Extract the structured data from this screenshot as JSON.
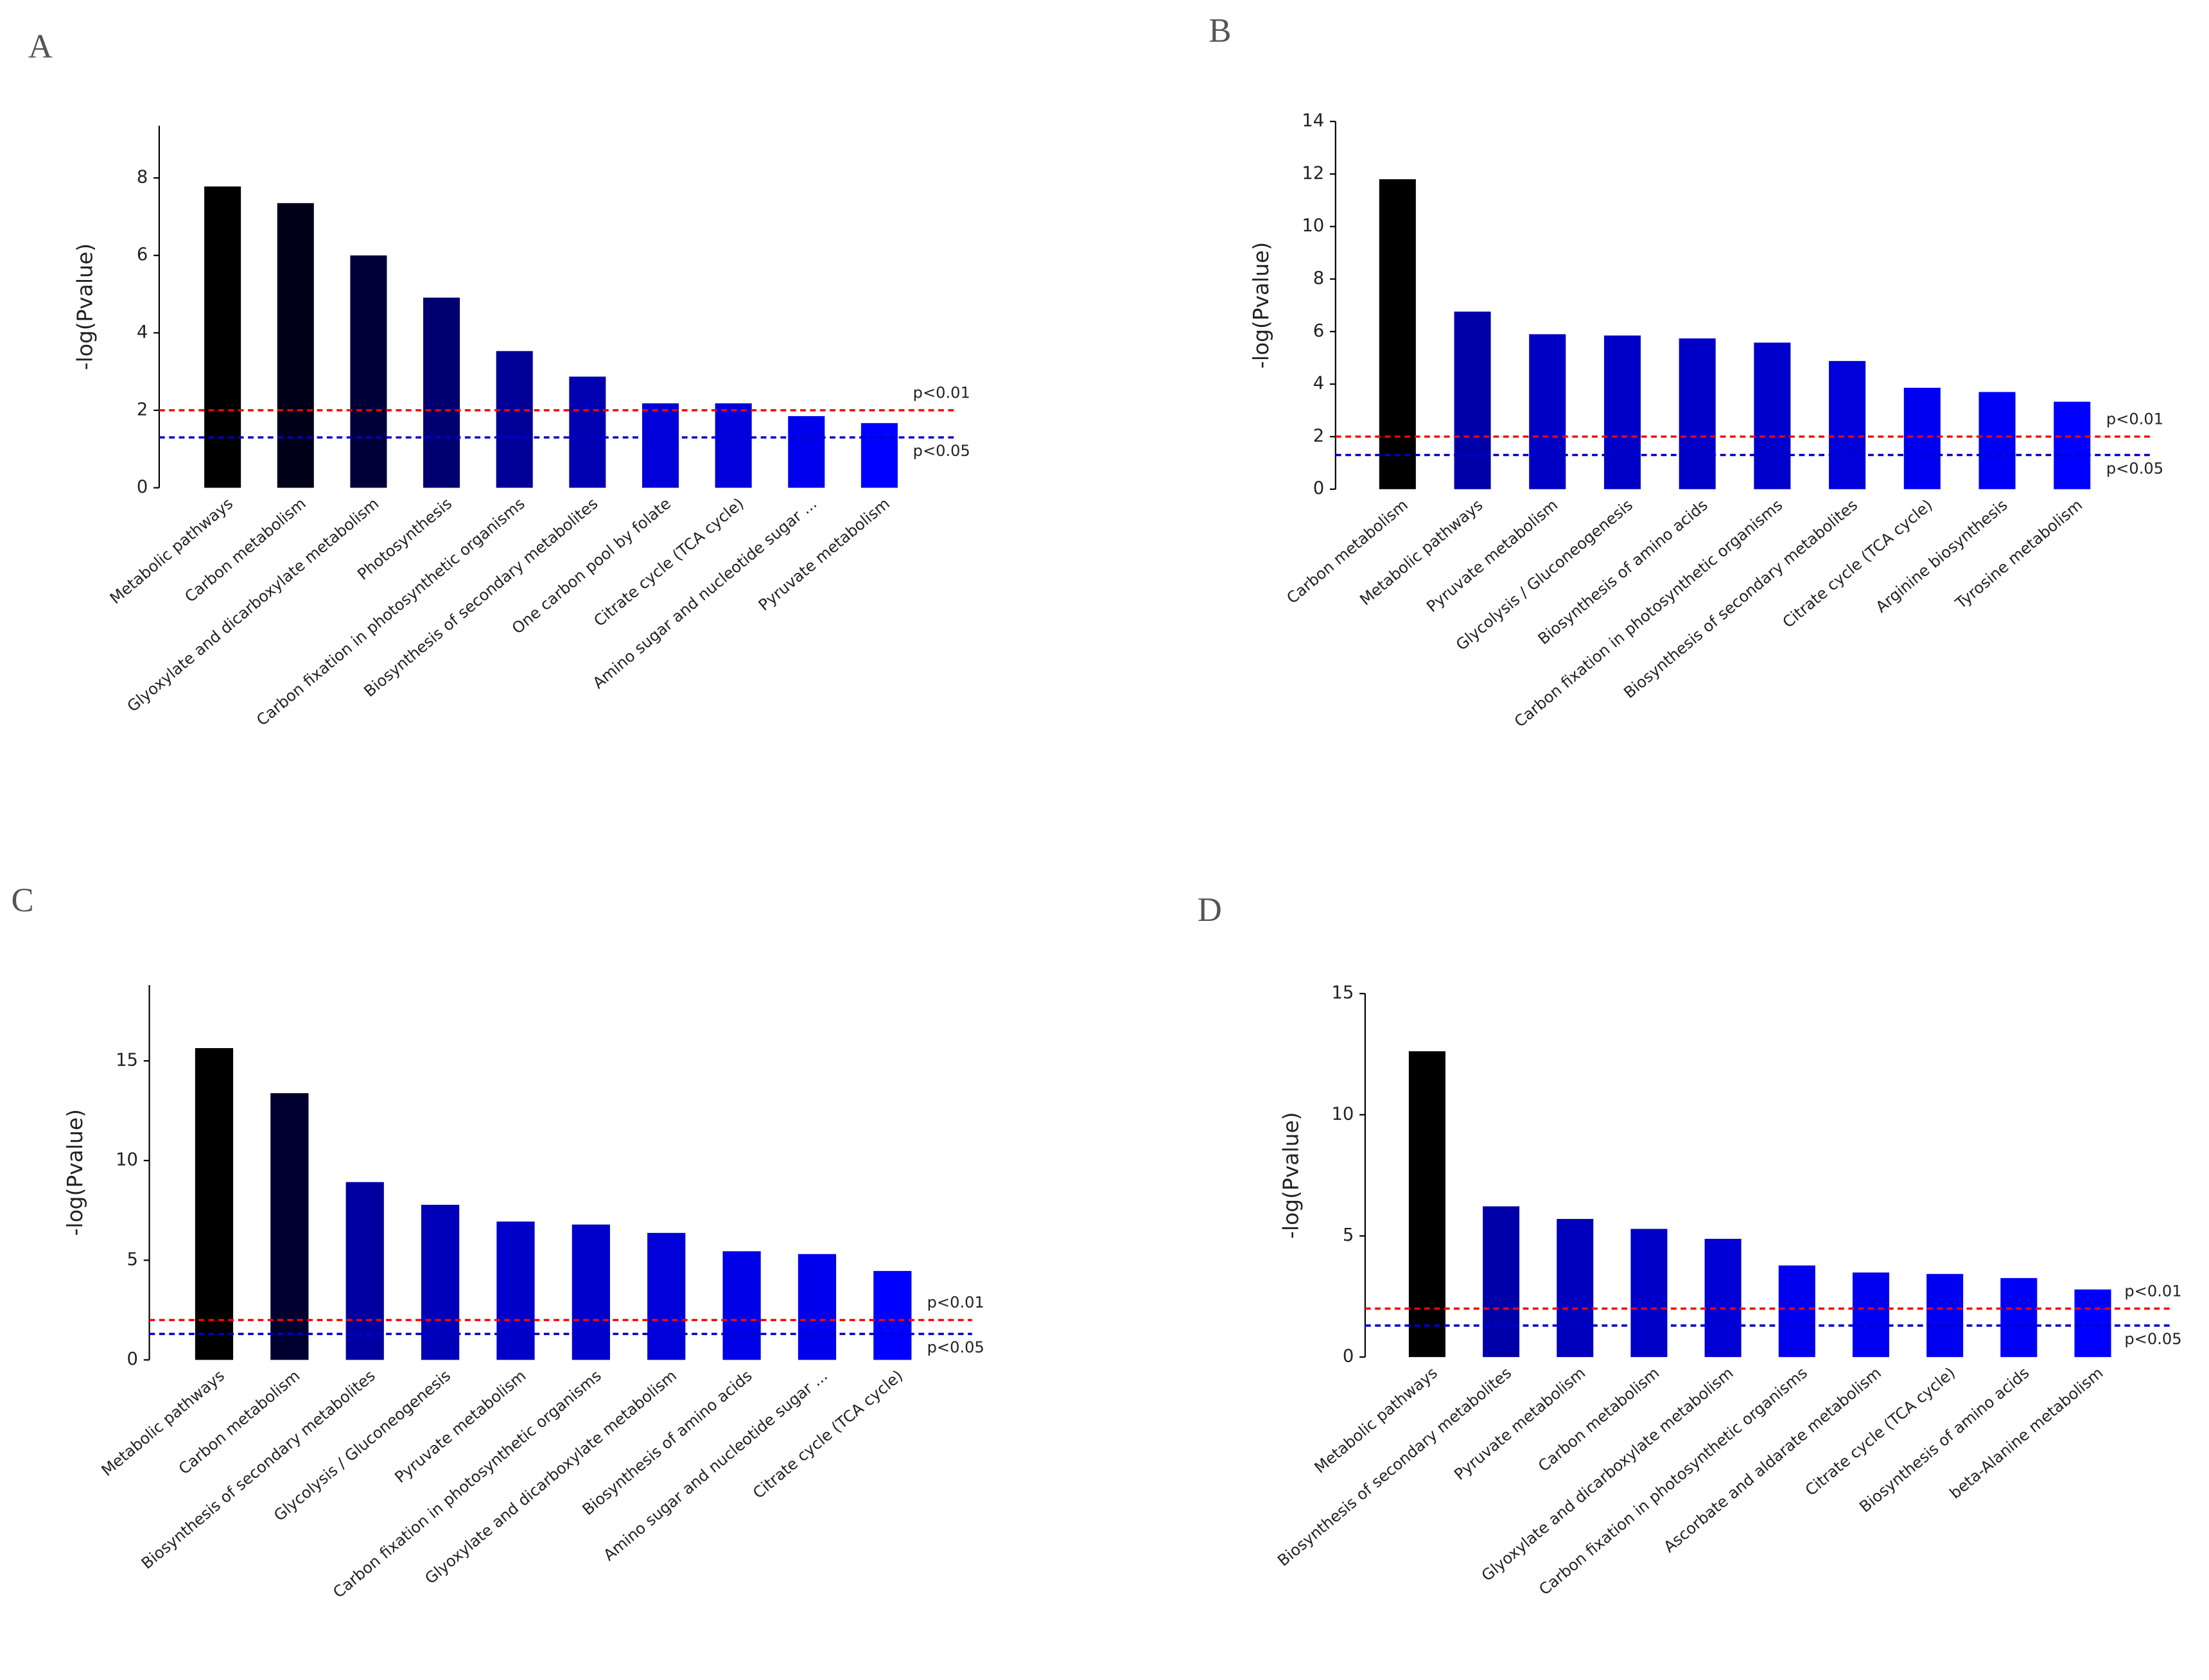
{
  "chart_data": [
    {
      "type": "bar",
      "title": "A",
      "y_label": "-log(Pvalue)",
      "categories": [
        "Metabolic pathways",
        "Carbon metabolism",
        "Glyoxylate and dicarboxylate metabolism",
        "Photosynthesis",
        "Carbon fixation in photosynthetic organisms",
        "Biosynthesis of secondary metabolites",
        "One carbon pool by folate",
        "Citrate cycle (TCA cycle)",
        "Amino sugar and nucleotide sugar ...",
        "Pyruvate metabolism"
      ],
      "values": [
        7.78,
        7.35,
        6.0,
        4.91,
        3.53,
        2.87,
        2.18,
        2.18,
        1.85,
        1.67
      ],
      "colors": [
        "#000000",
        "#000018",
        "#000038",
        "#000070",
        "#000098",
        "#0000b0",
        "#0000d8",
        "#0000dc",
        "#0000ec",
        "#0000ff"
      ],
      "ylim": [
        0,
        9.35
      ],
      "yticks": [
        0,
        2,
        4,
        6,
        8
      ],
      "reference_lines": [
        {
          "value": 2,
          "label": "p<0.01",
          "color": "#ff0000"
        },
        {
          "value": 1.301,
          "label": "p<0.05",
          "color": "#0000cc"
        }
      ]
    },
    {
      "type": "bar",
      "title": "B",
      "y_label": "-log(Pvalue)",
      "categories": [
        "Carbon metabolism",
        "Metabolic pathways",
        "Pyruvate metabolism",
        "Glycolysis / Gluconeogenesis",
        "Biosynthesis of amino acids",
        "Carbon fixation in photosynthetic organisms",
        "Biosynthesis of secondary metabolites",
        "Citrate cycle (TCA cycle)",
        "Arginine biosynthesis",
        "Tyrosine metabolism"
      ],
      "values": [
        11.8,
        6.76,
        5.9,
        5.85,
        5.74,
        5.58,
        4.88,
        3.86,
        3.7,
        3.33
      ],
      "colors": [
        "#000000",
        "#0000a8",
        "#0000c4",
        "#0000c6",
        "#0000c8",
        "#0000cc",
        "#0000da",
        "#0000f0",
        "#0000f4",
        "#0000ff"
      ],
      "ylim": [
        0,
        14
      ],
      "yticks": [
        0,
        2,
        4,
        6,
        8,
        10,
        12,
        14
      ],
      "reference_lines": [
        {
          "value": 2,
          "label": "p<0.01",
          "color": "#ff0000"
        },
        {
          "value": 1.301,
          "label": "p<0.05",
          "color": "#0000cc"
        }
      ]
    },
    {
      "type": "bar",
      "title": "C",
      "y_label": "-log(Pvalue)",
      "categories": [
        "Metabolic pathways",
        "Carbon metabolism",
        "Biosynthesis of secondary metabolites",
        "Glycolysis / Gluconeogenesis",
        "Pyruvate metabolism",
        "Carbon fixation in photosynthetic organisms",
        "Glyoxylate and dicarboxylate metabolism",
        "Biosynthesis of amino acids",
        "Amino sugar and nucleotide sugar ...",
        "Citrate cycle (TCA cycle)"
      ],
      "values": [
        15.64,
        13.38,
        8.92,
        7.78,
        6.94,
        6.79,
        6.37,
        5.45,
        5.31,
        4.46
      ],
      "colors": [
        "#000000",
        "#000030",
        "#0000a0",
        "#0000b8",
        "#0000c8",
        "#0000cc",
        "#0000d8",
        "#0000e8",
        "#0000ec",
        "#0000ff"
      ],
      "ylim": [
        0,
        18.8
      ],
      "yticks": [
        0,
        5,
        10,
        15
      ],
      "reference_lines": [
        {
          "value": 2,
          "label": "p<0.01",
          "color": "#ff0000"
        },
        {
          "value": 1.301,
          "label": "p<0.05",
          "color": "#0000cc"
        }
      ]
    },
    {
      "type": "bar",
      "title": "D",
      "y_label": "-log(Pvalue)",
      "categories": [
        "Metabolic pathways",
        "Biosynthesis of secondary metabolites",
        "Pyruvate metabolism",
        "Carbon metabolism",
        "Glyoxylate and dicarboxylate metabolism",
        "Carbon fixation in photosynthetic organisms",
        "Ascorbate and aldarate metabolism",
        "Citrate cycle (TCA cycle)",
        "Biosynthesis of amino acids",
        "beta-Alanine metabolism"
      ],
      "values": [
        12.62,
        6.22,
        5.7,
        5.29,
        4.88,
        3.78,
        3.49,
        3.43,
        3.26,
        2.79
      ],
      "colors": [
        "#000000",
        "#0000a8",
        "#0000bc",
        "#0000c8",
        "#0000d4",
        "#0000ec",
        "#0000f0",
        "#0000f2",
        "#0000f6",
        "#0000ff"
      ],
      "ylim": [
        0,
        15
      ],
      "yticks": [
        0,
        5,
        10,
        15
      ],
      "reference_lines": [
        {
          "value": 2,
          "label": "p<0.01",
          "color": "#ff0000"
        },
        {
          "value": 1.301,
          "label": "p<0.05",
          "color": "#0000cc"
        }
      ]
    }
  ]
}
